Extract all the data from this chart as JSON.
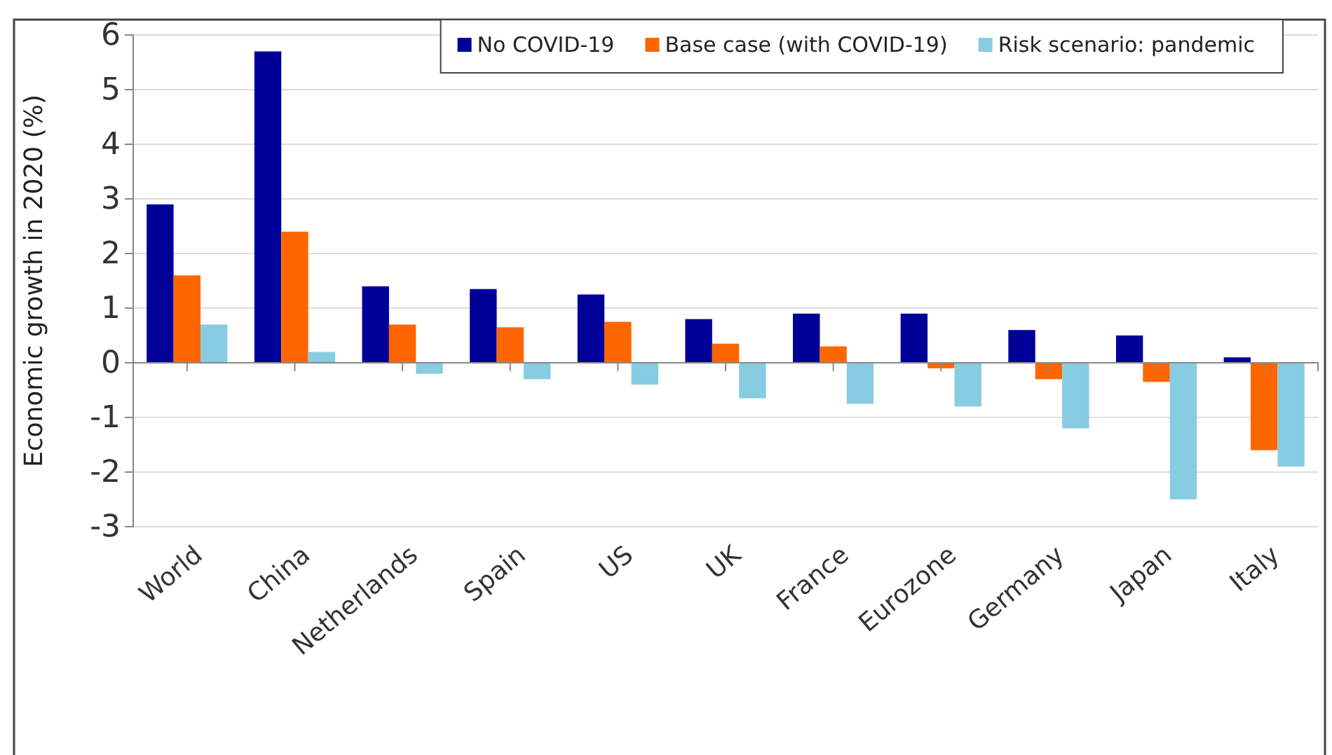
{
  "chart_data": {
    "type": "bar",
    "ylabel": "Economic growth in 2020 (%)",
    "categories": [
      "World",
      "China",
      "Netherlands",
      "Spain",
      "US",
      "UK",
      "France",
      "Eurozone",
      "Germany",
      "Japan",
      "Italy"
    ],
    "series": [
      {
        "name": "No COVID-19",
        "color": "#000099",
        "values": [
          2.9,
          5.7,
          1.4,
          1.35,
          1.25,
          0.8,
          0.9,
          0.9,
          0.6,
          0.5,
          0.1
        ]
      },
      {
        "name": "Base case (with COVID-19)",
        "color": "#ff6600",
        "values": [
          1.6,
          2.4,
          0.7,
          0.65,
          0.75,
          0.35,
          0.3,
          -0.1,
          -0.3,
          -0.35,
          -1.6
        ]
      },
      {
        "name": "Risk scenario: pandemic",
        "color": "#87cce0",
        "values": [
          0.7,
          0.2,
          -0.2,
          -0.3,
          -0.4,
          -0.65,
          -0.75,
          -0.8,
          -1.2,
          -2.5,
          -1.9
        ]
      }
    ],
    "ylim": [
      -3,
      6
    ],
    "yticks": [
      -3,
      -2,
      -1,
      0,
      1,
      2,
      3,
      4,
      5,
      6
    ],
    "grid": "y",
    "legend": "top right"
  }
}
